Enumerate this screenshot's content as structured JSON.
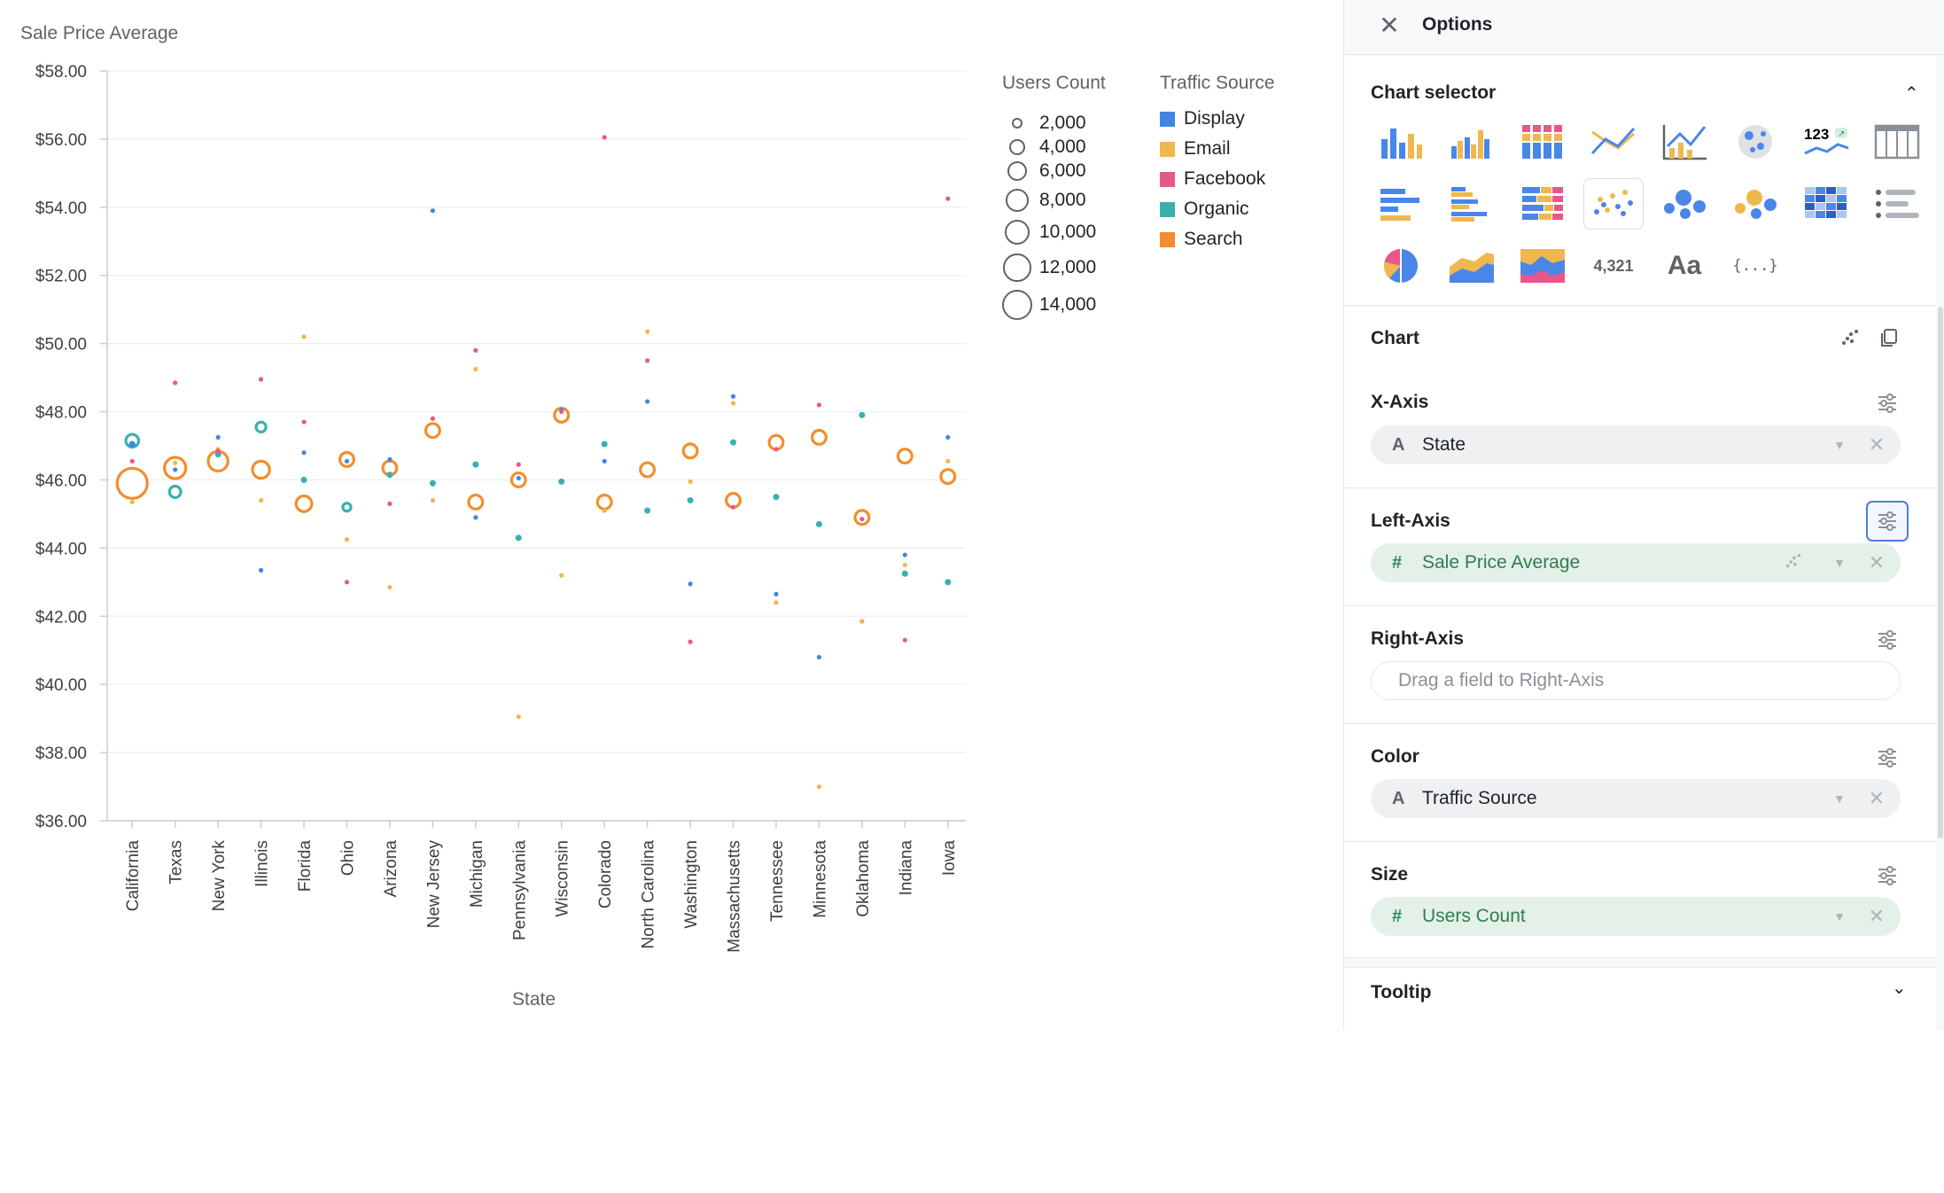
{
  "chart_data": {
    "type": "scatter",
    "title": "",
    "xlabel": "State",
    "ylabel": "Sale Price Average",
    "y_tick_labels": [
      "$36.00",
      "$38.00",
      "$40.00",
      "$42.00",
      "$44.00",
      "$46.00",
      "$48.00",
      "$50.00",
      "$52.00",
      "$54.00",
      "$56.00",
      "$58.00"
    ],
    "ylim": [
      36,
      58
    ],
    "grid": true,
    "categories": [
      "California",
      "Texas",
      "New York",
      "Illinois",
      "Florida",
      "Ohio",
      "Arizona",
      "New Jersey",
      "Michigan",
      "Pennsylvania",
      "Wisconsin",
      "Colorado",
      "North Carolina",
      "Washington",
      "Massachusetts",
      "Tennessee",
      "Minnesota",
      "Oklahoma",
      "Indiana",
      "Iowa"
    ],
    "color_legend_title": "Traffic Source",
    "size_legend_title": "Users Count",
    "size_legend": [
      {
        "label": "2,000",
        "value": 2000
      },
      {
        "label": "4,000",
        "value": 4000
      },
      {
        "label": "6,000",
        "value": 6000
      },
      {
        "label": "8,000",
        "value": 8000
      },
      {
        "label": "10,000",
        "value": 10000
      },
      {
        "label": "12,000",
        "value": 12000
      },
      {
        "label": "14,000",
        "value": 14000
      }
    ],
    "series": [
      {
        "name": "Display",
        "color": "#4285e4",
        "values": [
          47.05,
          46.3,
          47.25,
          43.35,
          46.8,
          46.55,
          46.6,
          53.9,
          44.9,
          46.05,
          48.05,
          46.55,
          48.3,
          42.95,
          48.45,
          42.65,
          40.8,
          41.85,
          43.8,
          47.25
        ],
        "sizes": [
          600,
          200,
          200,
          200,
          200,
          200,
          200,
          200,
          200,
          200,
          200,
          200,
          200,
          200,
          200,
          200,
          200,
          200,
          200,
          200
        ]
      },
      {
        "name": "Email",
        "color": "#f0b74f",
        "values": [
          45.35,
          46.5,
          46.9,
          45.4,
          50.2,
          44.25,
          42.85,
          45.4,
          49.25,
          39.05,
          43.2,
          45.1,
          50.35,
          45.95,
          48.25,
          42.4,
          37.0,
          41.85,
          43.5,
          46.55
        ],
        "sizes": [
          200,
          200,
          200,
          200,
          200,
          200,
          200,
          200,
          200,
          200,
          200,
          200,
          200,
          200,
          200,
          200,
          200,
          200,
          200,
          200
        ]
      },
      {
        "name": "Facebook",
        "color": "#e8578a",
        "values": [
          46.55,
          48.85,
          46.85,
          48.95,
          47.7,
          43.0,
          45.3,
          47.8,
          49.8,
          46.45,
          48.0,
          56.05,
          49.5,
          41.25,
          45.2,
          46.9,
          48.2,
          44.85,
          41.3,
          54.25
        ],
        "sizes": [
          200,
          200,
          200,
          200,
          200,
          200,
          200,
          200,
          200,
          200,
          200,
          200,
          200,
          200,
          200,
          200,
          200,
          200,
          200,
          200
        ]
      },
      {
        "name": "Organic",
        "color": "#3ab0b0",
        "values": [
          47.15,
          45.65,
          46.75,
          47.55,
          46.0,
          45.2,
          46.15,
          45.9,
          46.45,
          44.3,
          45.95,
          47.05,
          45.1,
          45.4,
          47.1,
          45.5,
          44.7,
          47.9,
          43.25,
          43.0
        ],
        "sizes": [
          2500,
          2000,
          600,
          1500,
          600,
          1000,
          600,
          600,
          600,
          600,
          600,
          600,
          600,
          600,
          600,
          600,
          600,
          600,
          600,
          600
        ]
      },
      {
        "name": "Search",
        "color": "#f28e2c",
        "values": [
          45.9,
          46.35,
          46.55,
          46.3,
          45.3,
          46.6,
          46.35,
          47.45,
          45.35,
          46.0,
          47.9,
          45.35,
          46.3,
          46.85,
          45.4,
          47.1,
          47.25,
          44.9,
          46.7,
          46.1
        ],
        "sizes": [
          14000,
          7000,
          6000,
          4500,
          3800,
          3000,
          3000,
          3000,
          3000,
          3000,
          3000,
          3000,
          3000,
          3000,
          3000,
          3000,
          3000,
          3000,
          3000,
          3000
        ]
      }
    ]
  },
  "panel": {
    "title": "Options",
    "chart_selector": {
      "title": "Chart selector",
      "number_label": "4,321",
      "text_label": "Aa",
      "json_label": "{...}",
      "metric_label": "123"
    },
    "chart_section": {
      "title": "Chart"
    },
    "x_axis": {
      "title": "X-Axis",
      "field": "State",
      "type_icon": "A"
    },
    "left_axis": {
      "title": "Left-Axis",
      "field": "Sale Price Average",
      "type_icon": "#"
    },
    "right_axis": {
      "title": "Right-Axis",
      "placeholder": "Drag a field to Right-Axis"
    },
    "color": {
      "title": "Color",
      "field": "Traffic Source",
      "type_icon": "A"
    },
    "size": {
      "title": "Size",
      "field": "Users Count",
      "type_icon": "#"
    },
    "tooltip": {
      "title": "Tooltip"
    }
  }
}
